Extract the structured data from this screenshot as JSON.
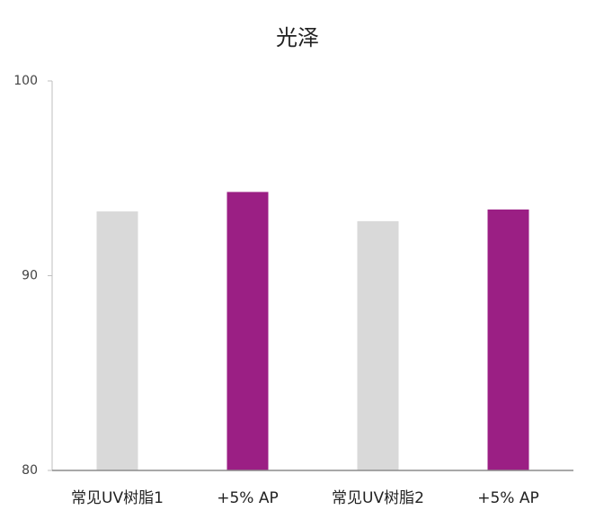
{
  "chart_data": {
    "type": "bar",
    "title": "光泽",
    "categories": [
      "常见UV树脂1",
      "+5% AP",
      "常见UV树脂2",
      "+5% AP"
    ],
    "values": [
      93.3,
      94.3,
      92.8,
      93.4
    ],
    "colors": [
      "#d9d9d9",
      "#9b1f84",
      "#d9d9d9",
      "#9b1f84"
    ],
    "ylim": [
      80,
      100
    ],
    "yticks": [
      80,
      90,
      100
    ],
    "grid": false
  }
}
